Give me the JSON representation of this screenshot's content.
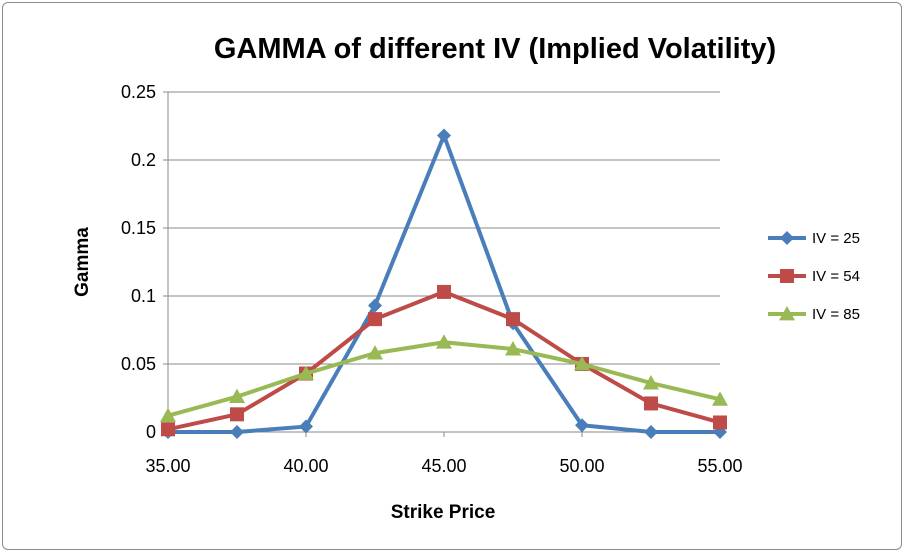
{
  "chart_data": {
    "type": "line",
    "title": "GAMMA  of different IV (Implied Volatility)",
    "xlabel": "Strike Price",
    "ylabel": "Gamma",
    "x": [
      35,
      37.5,
      40,
      42.5,
      45,
      47.5,
      50,
      52.5,
      55
    ],
    "xticks": [
      35,
      40,
      45,
      50,
      55
    ],
    "xtick_labels": [
      "35.00",
      "40.00",
      "45.00",
      "50.00",
      "55.00"
    ],
    "xlim": [
      35,
      55
    ],
    "yticks": [
      0,
      0.05,
      0.1,
      0.15,
      0.2,
      0.25
    ],
    "ytick_labels": [
      "0",
      "0.05",
      "0.1",
      "0.15",
      "0.2",
      "0.25"
    ],
    "ylim": [
      0,
      0.25
    ],
    "grid": "horizontal",
    "legend_position": "right",
    "series": [
      {
        "name": "IV = 25",
        "color": "#4a7ebb",
        "marker": "diamond",
        "values": [
          0.0,
          0.0,
          0.004,
          0.093,
          0.218,
          0.08,
          0.005,
          0.0,
          0.0
        ]
      },
      {
        "name": "IV = 54",
        "color": "#be4b48",
        "marker": "square",
        "values": [
          0.002,
          0.013,
          0.043,
          0.083,
          0.103,
          0.083,
          0.05,
          0.021,
          0.007
        ]
      },
      {
        "name": "IV = 85",
        "color": "#98b954",
        "marker": "triangle",
        "values": [
          0.012,
          0.026,
          0.043,
          0.058,
          0.066,
          0.061,
          0.05,
          0.036,
          0.024
        ]
      }
    ]
  }
}
